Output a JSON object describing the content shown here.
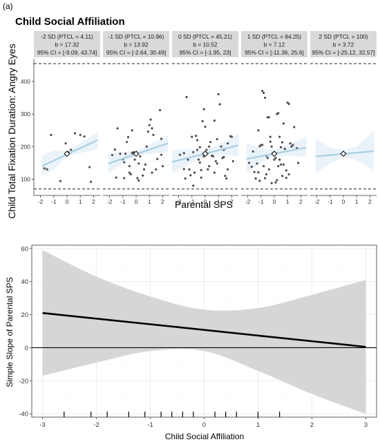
{
  "panel_label": "(a)",
  "chart_data": [
    {
      "type": "scatter",
      "title": "Child Social Affiliation",
      "xlabel": "Parental SPS",
      "ylabel": "Child Total Fixation Duration: Angry Eyes",
      "xlim": [
        -2.5,
        2.5
      ],
      "ylim": [
        50,
        470
      ],
      "x_ticks": [
        "-2",
        "-1",
        "0",
        "1",
        "2"
      ],
      "y_ticks": [
        "100",
        "200",
        "300",
        "400"
      ],
      "reference_lines_dashed": [
        70,
        455
      ],
      "colors": {
        "fit_line": "#a8cfe3",
        "ribbon": "#ebf3fa",
        "points": "#4d4d4d",
        "strip_bg": "#d9d9d9"
      },
      "facets": [
        {
          "strip": [
            "-2 SD (PTCL = 4.11)",
            "b = 17.32",
            "95% CI = [-9.09, 43.74]"
          ],
          "fit": {
            "x": [
              -1.9,
              2.3
            ],
            "y": [
              140,
              220
            ]
          },
          "ribbon": {
            "upper": [
              [
                -1.9,
                173
              ],
              [
                -1,
                188
              ],
              [
                0,
                188
              ],
              [
                1,
                210
              ],
              [
                2.3,
                246
              ]
            ],
            "lower": [
              [
                -1.9,
                108
              ],
              [
                -1,
                130
              ],
              [
                0,
                170
              ],
              [
                1,
                180
              ],
              [
                2.3,
                192
              ]
            ]
          },
          "mean_marker": [
            0,
            178
          ],
          "points": [
            [
              -1.7,
              133
            ],
            [
              -1.5,
              130
            ],
            [
              -1.2,
              236
            ],
            [
              -0.5,
              94
            ],
            [
              -0.1,
              210
            ],
            [
              0.1,
              183
            ],
            [
              0.3,
              190
            ],
            [
              0.6,
              241
            ],
            [
              1,
              236
            ],
            [
              1.3,
              231
            ],
            [
              1.7,
              137
            ],
            [
              1.8,
              92
            ]
          ]
        },
        {
          "strip": [
            "-1 SD (PTCL = 10.96)",
            "b = 13.92",
            "95% CI = [-2.64, 30.49]"
          ],
          "fit": {
            "x": [
              -2.1,
              2.4
            ],
            "y": [
              148,
              210
            ]
          },
          "ribbon": {
            "upper": [
              [
                -2.1,
                178
              ],
              [
                -1,
                185
              ],
              [
                0,
                186
              ],
              [
                1,
                205
              ],
              [
                2.4,
                235
              ]
            ],
            "lower": [
              [
                -2.1,
                118
              ],
              [
                -1,
                150
              ],
              [
                0,
                172
              ],
              [
                1,
                177
              ],
              [
                2.4,
                185
              ]
            ]
          },
          "mean_marker": [
            0,
            178
          ],
          "points": [
            [
              -1.4,
              256
            ],
            [
              -1.6,
              191
            ],
            [
              -1.8,
              174
            ],
            [
              -1.2,
              178
            ],
            [
              -1,
              161
            ],
            [
              -0.9,
              152
            ],
            [
              -0.8,
              178
            ],
            [
              -0.7,
              214
            ],
            [
              -0.6,
              229
            ],
            [
              -0.5,
              120
            ],
            [
              -0.5,
              140
            ],
            [
              -0.4,
              115
            ],
            [
              -0.3,
              180
            ],
            [
              -0.2,
              183
            ],
            [
              -0.1,
              160
            ],
            [
              0.1,
              103
            ],
            [
              0.2,
              148
            ],
            [
              0.3,
              170
            ],
            [
              0.5,
              111
            ],
            [
              0.6,
              130
            ],
            [
              0.7,
              145
            ],
            [
              0.8,
              200
            ],
            [
              0.9,
              246
            ],
            [
              1,
              266
            ],
            [
              1.1,
              283
            ],
            [
              1.2,
              256
            ],
            [
              1.3,
              236
            ],
            [
              1.5,
              130
            ],
            [
              1.6,
              162
            ],
            [
              1.8,
              312
            ],
            [
              1.9,
              175
            ],
            [
              2,
              140
            ],
            [
              -1.5,
              105
            ],
            [
              -0.9,
              103
            ],
            [
              0.2,
              96
            ],
            [
              1.2,
              120
            ],
            [
              1.9,
              224
            ],
            [
              -0.3,
              250
            ]
          ]
        },
        {
          "strip": [
            "0 SD (PTCL = 45.21)",
            "b = 10.52",
            "95% CI = [-1.95, 23]"
          ],
          "fit": {
            "x": [
              -2.5,
              2.5
            ],
            "y": [
              153,
              204
            ]
          },
          "ribbon": {
            "upper": [
              [
                -2.5,
                190
              ],
              [
                -1,
                192
              ],
              [
                0,
                188
              ],
              [
                1,
                206
              ],
              [
                2.5,
                240
              ]
            ],
            "lower": [
              [
                -2.5,
                118
              ],
              [
                -1,
                150
              ],
              [
                0,
                170
              ],
              [
                1,
                176
              ],
              [
                2.5,
                172
              ]
            ]
          },
          "mean_marker": [
            0,
            178
          ],
          "points": [
            [
              -1.9,
              175
            ],
            [
              -1.6,
              180
            ],
            [
              -1.4,
              352
            ],
            [
              -1.3,
              160
            ],
            [
              -1.2,
              130
            ],
            [
              -1.1,
              112
            ],
            [
              -1,
              230
            ],
            [
              -0.9,
              183
            ],
            [
              -0.8,
              120
            ],
            [
              -0.7,
              233
            ],
            [
              -0.6,
              220
            ],
            [
              -0.5,
              160
            ],
            [
              -0.4,
              151
            ],
            [
              -0.3,
              128
            ],
            [
              -0.2,
              278
            ],
            [
              -0.1,
              315
            ],
            [
              0,
              261
            ],
            [
              0.1,
              190
            ],
            [
              0.2,
              180
            ],
            [
              0.3,
              200
            ],
            [
              0.4,
              214
            ],
            [
              0.5,
              172
            ],
            [
              0.6,
              170
            ],
            [
              0.7,
              280
            ],
            [
              0.8,
              155
            ],
            [
              0.9,
              148
            ],
            [
              1,
              361
            ],
            [
              1.1,
              330
            ],
            [
              1.2,
              200
            ],
            [
              1.3,
              165
            ],
            [
              1.4,
              168
            ],
            [
              1.5,
              110
            ],
            [
              1.6,
              102
            ],
            [
              1.7,
              210
            ],
            [
              1.9,
              232
            ],
            [
              2,
              230
            ],
            [
              -1.6,
              131
            ],
            [
              -1.5,
              102
            ],
            [
              -0.6,
              190
            ],
            [
              -0.3,
              105
            ],
            [
              0.3,
              140
            ],
            [
              0.7,
              120
            ],
            [
              -0.1,
              170
            ],
            [
              0.2,
              130
            ],
            [
              1.7,
              130
            ],
            [
              1.4,
              190
            ],
            [
              -0.9,
              80
            ],
            [
              0.9,
              223
            ],
            [
              2.1,
              155
            ],
            [
              -0.4,
              198
            ]
          ]
        },
        {
          "strip": [
            "1 SD (PTCL = 84.25)",
            "b = 7.12",
            "95% CI = [-11.36, 25.6]"
          ],
          "fit": {
            "x": [
              -2.1,
              2.4
            ],
            "y": [
              162,
              197
            ]
          },
          "ribbon": {
            "upper": [
              [
                -2.1,
                210
              ],
              [
                -1,
                195
              ],
              [
                0,
                188
              ],
              [
                1,
                205
              ],
              [
                2.4,
                230
              ]
            ],
            "lower": [
              [
                -2.1,
                118
              ],
              [
                -1,
                152
              ],
              [
                0,
                170
              ],
              [
                1,
                172
              ],
              [
                2.4,
                168
              ]
            ]
          },
          "mean_marker": [
            0,
            178
          ],
          "points": [
            [
              -1.9,
              150
            ],
            [
              -1.7,
              138
            ],
            [
              -1.6,
              185
            ],
            [
              -1.5,
              122
            ],
            [
              -1.4,
              102
            ],
            [
              -1.3,
              148
            ],
            [
              -1.2,
              121
            ],
            [
              -1.1,
              201
            ],
            [
              -1,
              205
            ],
            [
              -0.9,
              371
            ],
            [
              -0.8,
              365
            ],
            [
              -0.7,
              350
            ],
            [
              -0.6,
              172
            ],
            [
              -0.5,
              290
            ],
            [
              -0.4,
              290
            ],
            [
              -0.3,
              230
            ],
            [
              -0.2,
              200
            ],
            [
              -0.1,
              180
            ],
            [
              0,
              160
            ],
            [
              0.1,
              165
            ],
            [
              0.2,
              300
            ],
            [
              0.3,
              303
            ],
            [
              0.4,
              160
            ],
            [
              0.5,
              145
            ],
            [
              0.6,
              213
            ],
            [
              0.7,
              271
            ],
            [
              0.8,
              193
            ],
            [
              0.9,
              127
            ],
            [
              1,
              335
            ],
            [
              1.1,
              331
            ],
            [
              1.2,
              210
            ],
            [
              1.3,
              200
            ],
            [
              1.4,
              205
            ],
            [
              1.5,
              260
            ],
            [
              1.7,
              195
            ],
            [
              1.8,
              150
            ],
            [
              -0.9,
              205
            ],
            [
              -1.1,
              95
            ],
            [
              -0.7,
              103
            ],
            [
              -0.6,
              115
            ],
            [
              -0.5,
              165
            ],
            [
              -0.4,
              130
            ],
            [
              0.3,
              140
            ],
            [
              0.5,
              198
            ],
            [
              0.4,
              230
            ],
            [
              0.9,
              104
            ],
            [
              -1.2,
              250
            ],
            [
              -0.3,
              215
            ],
            [
              0.2,
              97
            ],
            [
              1.1,
              115
            ],
            [
              -0.8,
              140
            ],
            [
              0.6,
              110
            ],
            [
              -0.2,
              88
            ],
            [
              0.1,
              90
            ],
            [
              0.7,
              145
            ]
          ]
        },
        {
          "strip": [
            "2 SD (PTCL = 100)",
            "b = 3.72",
            "95% CI = [-25.12, 32.57]"
          ],
          "fit": {
            "x": [
              -2.1,
              2.3
            ],
            "y": [
              170,
              186
            ]
          },
          "ribbon": {
            "upper": [
              [
                -2.1,
                224
              ],
              [
                -1,
                198
              ],
              [
                0,
                190
              ],
              [
                1,
                200
              ],
              [
                2.3,
                248
              ]
            ],
            "lower": [
              [
                -2.1,
                118
              ],
              [
                -1,
                148
              ],
              [
                0,
                168
              ],
              [
                1,
                158
              ],
              [
                2.3,
                128
              ]
            ]
          },
          "mean_marker": [
            0,
            178
          ],
          "points": []
        }
      ]
    },
    {
      "type": "line",
      "xlabel": "Child Social Affiliation",
      "ylabel": "Simple Slope of Parental SPS",
      "xlim": [
        -3.2,
        3.2
      ],
      "ylim": [
        -42,
        62
      ],
      "x_ticks": [
        "-3",
        "-2",
        "-1",
        "0",
        "1",
        "2",
        "3"
      ],
      "y_ticks": [
        "-40",
        "-20",
        "0",
        "20",
        "40",
        "60"
      ],
      "grid": true,
      "colors": {
        "line": "#000000",
        "ribbon": "#d6d6d6"
      },
      "x": [
        -3,
        3
      ],
      "y": [
        21,
        0.5
      ],
      "ci_upper": [
        [
          -3,
          59
        ],
        [
          -2,
          43
        ],
        [
          -1,
          31
        ],
        [
          0,
          23
        ],
        [
          1,
          24
        ],
        [
          2,
          32
        ],
        [
          3,
          41
        ]
      ],
      "ci_lower": [
        [
          -3,
          -17
        ],
        [
          -2,
          -9
        ],
        [
          -1,
          -2
        ],
        [
          0,
          -2
        ],
        [
          1,
          -14
        ],
        [
          2,
          -28
        ],
        [
          3,
          -40
        ]
      ],
      "rug": [
        -2.6,
        -2.1,
        -1.8,
        -1.4,
        -1.1,
        -0.8,
        -0.6,
        -0.4,
        -0.2,
        0.2,
        0.4,
        0.6,
        1.0,
        1.4
      ]
    }
  ]
}
